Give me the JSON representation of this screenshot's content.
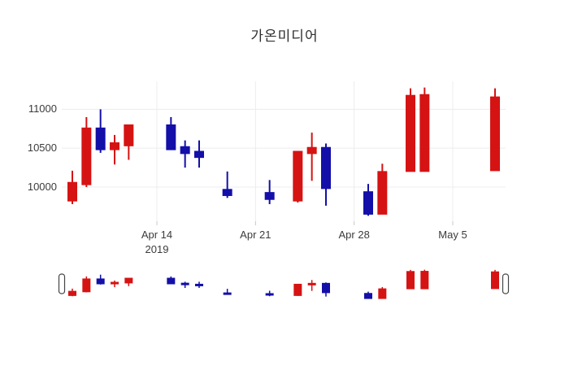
{
  "title": "가온미디어",
  "colors": {
    "increasing": "#d61313",
    "decreasing": "#130fa8",
    "grid": "#ececec",
    "tick_text": "#3b3b3b",
    "background": "#ffffff",
    "handle_fill": "#ffffff",
    "handle_border": "#444444"
  },
  "chart_data": {
    "type": "candlestick",
    "title": "가온미디어",
    "legend": "none",
    "grid": "on",
    "x_axis": {
      "range_days": [
        -0.75,
        30.75
      ],
      "ticks": [
        {
          "label": "Apr 14",
          "sublabel": "2019",
          "day": 6
        },
        {
          "label": "Apr 21",
          "sublabel": "",
          "day": 13
        },
        {
          "label": "Apr 28",
          "sublabel": "",
          "day": 20
        },
        {
          "label": "May 5",
          "sublabel": "",
          "day": 27
        }
      ]
    },
    "y_axis": {
      "range": [
        9560,
        11360
      ],
      "ticks": [
        {
          "label": "10000",
          "value": 10000
        },
        {
          "label": "10500",
          "value": 10500
        },
        {
          "label": "11000",
          "value": 11000
        }
      ]
    },
    "rangeslider": {
      "visible": true,
      "y_range": [
        9560,
        11400
      ]
    },
    "candles": [
      {
        "date": "Apr 8",
        "day": 0,
        "open": 9820,
        "high": 10210,
        "low": 9780,
        "close": 10060
      },
      {
        "date": "Apr 9",
        "day": 1,
        "open": 10030,
        "high": 10900,
        "low": 10000,
        "close": 10760
      },
      {
        "date": "Apr 10",
        "day": 2,
        "open": 10760,
        "high": 11000,
        "low": 10440,
        "close": 10480
      },
      {
        "date": "Apr 11",
        "day": 3,
        "open": 10480,
        "high": 10670,
        "low": 10290,
        "close": 10570
      },
      {
        "date": "Apr 12",
        "day": 4,
        "open": 10530,
        "high": 10800,
        "low": 10350,
        "close": 10800
      },
      {
        "date": "Apr 15",
        "day": 7,
        "open": 10800,
        "high": 10900,
        "low": 10480,
        "close": 10480
      },
      {
        "date": "Apr 16",
        "day": 8,
        "open": 10520,
        "high": 10600,
        "low": 10250,
        "close": 10430
      },
      {
        "date": "Apr 17",
        "day": 9,
        "open": 10460,
        "high": 10600,
        "low": 10250,
        "close": 10380
      },
      {
        "date": "Apr 19",
        "day": 11,
        "open": 9970,
        "high": 10200,
        "low": 9860,
        "close": 9890
      },
      {
        "date": "Apr 22",
        "day": 14,
        "open": 9930,
        "high": 10090,
        "low": 9780,
        "close": 9840
      },
      {
        "date": "Apr 24",
        "day": 16,
        "open": 9820,
        "high": 10460,
        "low": 9800,
        "close": 10460
      },
      {
        "date": "Apr 25",
        "day": 17,
        "open": 10430,
        "high": 10700,
        "low": 10080,
        "close": 10510
      },
      {
        "date": "Apr 26",
        "day": 18,
        "open": 10510,
        "high": 10560,
        "low": 9760,
        "close": 9980
      },
      {
        "date": "Apr 29",
        "day": 21,
        "open": 9940,
        "high": 10040,
        "low": 9630,
        "close": 9650
      },
      {
        "date": "Apr 30",
        "day": 22,
        "open": 9650,
        "high": 10300,
        "low": 9650,
        "close": 10200
      },
      {
        "date": "May 2",
        "day": 24,
        "open": 10200,
        "high": 11270,
        "low": 10200,
        "close": 11180
      },
      {
        "date": "May 3",
        "day": 25,
        "open": 10200,
        "high": 11280,
        "low": 10200,
        "close": 11190
      },
      {
        "date": "May 8",
        "day": 30,
        "open": 10210,
        "high": 11270,
        "low": 10210,
        "close": 11160
      }
    ]
  }
}
